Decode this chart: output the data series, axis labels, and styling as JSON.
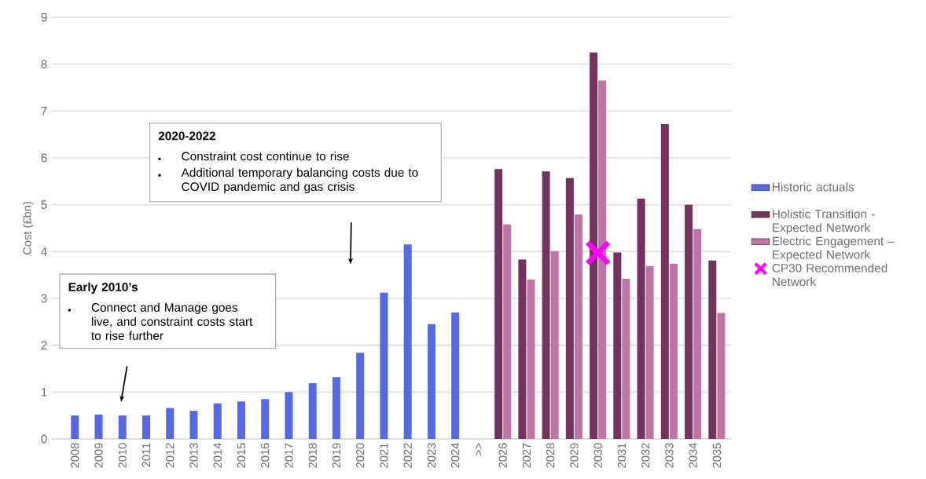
{
  "chart_data": {
    "type": "bar",
    "ylabel": "Cost (£bn)",
    "categories": [
      "2008",
      "2009",
      "2010",
      "2011",
      "2012",
      "2013",
      "2014",
      "2015",
      "2016",
      "2017",
      "2018",
      "2019",
      "2020",
      "2021",
      "2022",
      "2023",
      "2024",
      ">>",
      "2026",
      "2027",
      "2028",
      "2029",
      "2030",
      "2031",
      "2032",
      "2033",
      "2034",
      "2035"
    ],
    "series": [
      {
        "name": "Historic actuals",
        "color": "#5468e8",
        "values": [
          0.5,
          0.52,
          0.5,
          0.5,
          0.66,
          0.6,
          0.76,
          0.8,
          0.85,
          1.0,
          1.19,
          1.32,
          1.84,
          3.12,
          4.15,
          2.45,
          2.7,
          null,
          null,
          null,
          null,
          null,
          null,
          null,
          null,
          null,
          null,
          null
        ]
      },
      {
        "name": "Holistic Transition - Expected Network",
        "color": "#76325f",
        "values": [
          null,
          null,
          null,
          null,
          null,
          null,
          null,
          null,
          null,
          null,
          null,
          null,
          null,
          null,
          null,
          null,
          null,
          null,
          5.76,
          3.83,
          5.71,
          5.57,
          8.25,
          3.98,
          5.13,
          6.72,
          5.0,
          3.81
        ]
      },
      {
        "name": "Electric Engagement – Expected Network",
        "color": "#c074a6",
        "values": [
          null,
          null,
          null,
          null,
          null,
          null,
          null,
          null,
          null,
          null,
          null,
          null,
          null,
          null,
          null,
          null,
          null,
          null,
          4.58,
          3.4,
          4.01,
          4.79,
          7.65,
          3.42,
          3.69,
          3.74,
          4.48,
          2.69
        ]
      },
      {
        "name": "CP30 Recommended Network",
        "type": "scatter",
        "marker": "cross",
        "color": "#ff00ff",
        "values": [
          null,
          null,
          null,
          null,
          null,
          null,
          null,
          null,
          null,
          null,
          null,
          null,
          null,
          null,
          null,
          null,
          null,
          null,
          null,
          null,
          null,
          null,
          3.97,
          null,
          null,
          null,
          null,
          null
        ]
      }
    ],
    "ylim": [
      0,
      9
    ],
    "yticks": [
      0,
      1,
      2,
      3,
      4,
      5,
      6,
      7,
      8,
      9
    ],
    "grid": "y",
    "legend": "right",
    "annotations": [
      "Early 2010’s",
      "Connect and Manage goes live, and constraint costs start to rise further",
      "2020-2022",
      "Constraint cost continue to rise",
      "Additional temporary balancing costs due to COVID pandemic and gas crisis"
    ]
  }
}
